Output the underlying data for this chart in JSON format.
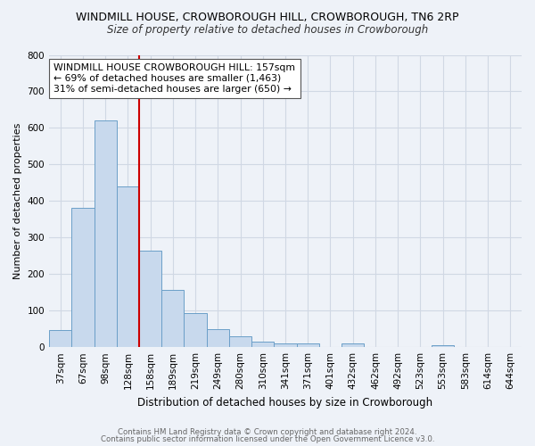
{
  "title": "WINDMILL HOUSE, CROWBOROUGH HILL, CROWBOROUGH, TN6 2RP",
  "subtitle": "Size of property relative to detached houses in Crowborough",
  "xlabel": "Distribution of detached houses by size in Crowborough",
  "ylabel": "Number of detached properties",
  "bins": [
    "37sqm",
    "67sqm",
    "98sqm",
    "128sqm",
    "158sqm",
    "189sqm",
    "219sqm",
    "249sqm",
    "280sqm",
    "310sqm",
    "341sqm",
    "371sqm",
    "401sqm",
    "432sqm",
    "462sqm",
    "492sqm",
    "523sqm",
    "553sqm",
    "583sqm",
    "614sqm",
    "644sqm"
  ],
  "values": [
    47,
    382,
    621,
    440,
    265,
    156,
    94,
    50,
    30,
    15,
    10,
    10,
    0,
    10,
    0,
    0,
    0,
    5,
    0,
    0,
    0
  ],
  "bar_color": "#c8d9ed",
  "bar_edge_color": "#6b9fc8",
  "grid_color": "#d0d8e4",
  "background_color": "#eef2f8",
  "vline_color": "#cc0000",
  "vline_x": 3.5,
  "annotation_text": "WINDMILL HOUSE CROWBOROUGH HILL: 157sqm\n← 69% of detached houses are smaller (1,463)\n31% of semi-detached houses are larger (650) →",
  "annotation_box_color": "#ffffff",
  "annotation_box_edge": "#555555",
  "ylim": [
    0,
    800
  ],
  "yticks": [
    0,
    100,
    200,
    300,
    400,
    500,
    600,
    700,
    800
  ],
  "title_fontsize": 9.0,
  "subtitle_fontsize": 8.5,
  "xlabel_fontsize": 8.5,
  "ylabel_fontsize": 8.0,
  "tick_fontsize": 7.5,
  "annot_fontsize": 7.8,
  "footer1": "Contains HM Land Registry data © Crown copyright and database right 2024.",
  "footer2": "Contains public sector information licensed under the Open Government Licence v3.0.",
  "footer_fontsize": 6.2,
  "footer_color": "#666666"
}
